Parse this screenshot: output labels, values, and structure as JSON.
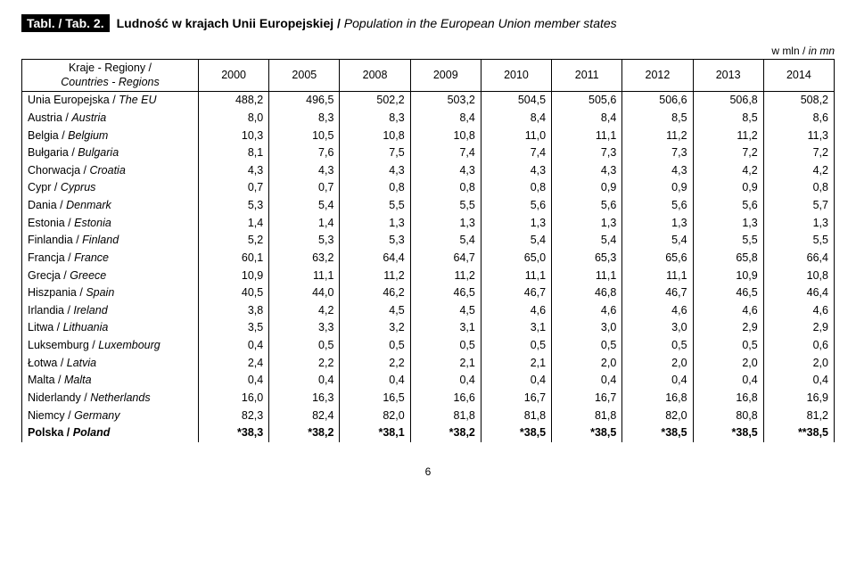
{
  "header": {
    "tab_label": "Tabl. / Tab. 2.",
    "title_bold": "Ludność w krajach Unii Europejskiej / ",
    "title_italic": "Population in the European Union member states",
    "unit_plain": "w mln / ",
    "unit_italic": "in mn"
  },
  "table": {
    "col_header_line1": "Kraje - Regiony /",
    "col_header_line2_italic": "Countries - Regions",
    "years": [
      "2000",
      "2005",
      "2008",
      "2009",
      "2010",
      "2011",
      "2012",
      "2013",
      "2014"
    ],
    "rows": [
      {
        "name_plain": "Unia Europejska / ",
        "name_italic": "The EU",
        "vals": [
          "488,2",
          "496,5",
          "502,2",
          "503,2",
          "504,5",
          "505,6",
          "506,6",
          "506,8",
          "508,2"
        ]
      },
      {
        "name_plain": "Austria / ",
        "name_italic": "Austria",
        "vals": [
          "8,0",
          "8,3",
          "8,3",
          "8,4",
          "8,4",
          "8,4",
          "8,5",
          "8,5",
          "8,6"
        ]
      },
      {
        "name_plain": "Belgia / ",
        "name_italic": "Belgium",
        "vals": [
          "10,3",
          "10,5",
          "10,8",
          "10,8",
          "11,0",
          "11,1",
          "11,2",
          "11,2",
          "11,3"
        ]
      },
      {
        "name_plain": "Bułgaria / ",
        "name_italic": "Bulgaria",
        "vals": [
          "8,1",
          "7,6",
          "7,5",
          "7,4",
          "7,4",
          "7,3",
          "7,3",
          "7,2",
          "7,2"
        ]
      },
      {
        "name_plain": "Chorwacja / ",
        "name_italic": "Croatia",
        "vals": [
          "4,3",
          "4,3",
          "4,3",
          "4,3",
          "4,3",
          "4,3",
          "4,3",
          "4,2",
          "4,2"
        ]
      },
      {
        "name_plain": "Cypr / ",
        "name_italic": "Cyprus",
        "vals": [
          "0,7",
          "0,7",
          "0,8",
          "0,8",
          "0,8",
          "0,9",
          "0,9",
          "0,9",
          "0,8"
        ]
      },
      {
        "name_plain": "Dania / ",
        "name_italic": "Denmark",
        "vals": [
          "5,3",
          "5,4",
          "5,5",
          "5,5",
          "5,6",
          "5,6",
          "5,6",
          "5,6",
          "5,7"
        ]
      },
      {
        "name_plain": "Estonia / ",
        "name_italic": "Estonia",
        "vals": [
          "1,4",
          "1,4",
          "1,3",
          "1,3",
          "1,3",
          "1,3",
          "1,3",
          "1,3",
          "1,3"
        ]
      },
      {
        "name_plain": "Finlandia / ",
        "name_italic": "Finland",
        "vals": [
          "5,2",
          "5,3",
          "5,3",
          "5,4",
          "5,4",
          "5,4",
          "5,4",
          "5,5",
          "5,5"
        ]
      },
      {
        "name_plain": "Francja / ",
        "name_italic": "France",
        "vals": [
          "60,1",
          "63,2",
          "64,4",
          "64,7",
          "65,0",
          "65,3",
          "65,6",
          "65,8",
          "66,4"
        ]
      },
      {
        "name_plain": "Grecja / ",
        "name_italic": "Greece",
        "vals": [
          "10,9",
          "11,1",
          "11,2",
          "11,2",
          "11,1",
          "11,1",
          "11,1",
          "10,9",
          "10,8"
        ]
      },
      {
        "name_plain": "Hiszpania / ",
        "name_italic": "Spain",
        "vals": [
          "40,5",
          "44,0",
          "46,2",
          "46,5",
          "46,7",
          "46,8",
          "46,7",
          "46,5",
          "46,4"
        ]
      },
      {
        "name_plain": "Irlandia / ",
        "name_italic": "Ireland",
        "vals": [
          "3,8",
          "4,2",
          "4,5",
          "4,5",
          "4,6",
          "4,6",
          "4,6",
          "4,6",
          "4,6"
        ]
      },
      {
        "name_plain": "Litwa / ",
        "name_italic": "Lithuania",
        "vals": [
          "3,5",
          "3,3",
          "3,2",
          "3,1",
          "3,1",
          "3,0",
          "3,0",
          "2,9",
          "2,9"
        ]
      },
      {
        "name_plain": "Luksemburg / ",
        "name_italic": "Luxembourg",
        "vals": [
          "0,4",
          "0,5",
          "0,5",
          "0,5",
          "0,5",
          "0,5",
          "0,5",
          "0,5",
          "0,6"
        ]
      },
      {
        "name_plain": "Łotwa / ",
        "name_italic": "Latvia",
        "vals": [
          "2,4",
          "2,2",
          "2,2",
          "2,1",
          "2,1",
          "2,0",
          "2,0",
          "2,0",
          "2,0"
        ]
      },
      {
        "name_plain": "Malta / ",
        "name_italic": "Malta",
        "vals": [
          "0,4",
          "0,4",
          "0,4",
          "0,4",
          "0,4",
          "0,4",
          "0,4",
          "0,4",
          "0,4"
        ]
      },
      {
        "name_plain": "Niderlandy / ",
        "name_italic": "Netherlands",
        "vals": [
          "16,0",
          "16,3",
          "16,5",
          "16,6",
          "16,7",
          "16,7",
          "16,8",
          "16,8",
          "16,9"
        ]
      },
      {
        "name_plain": "Niemcy / ",
        "name_italic": "Germany",
        "vals": [
          "82,3",
          "82,4",
          "82,0",
          "81,8",
          "81,8",
          "81,8",
          "82,0",
          "80,8",
          "81,2"
        ]
      },
      {
        "name_plain": "Polska / ",
        "name_italic": "Poland",
        "bold": true,
        "vals": [
          "*38,3",
          "*38,2",
          "*38,1",
          "*38,2",
          "*38,5",
          "*38,5",
          "*38,5",
          "*38,5",
          "**38,5"
        ]
      }
    ]
  },
  "page_number": "6"
}
